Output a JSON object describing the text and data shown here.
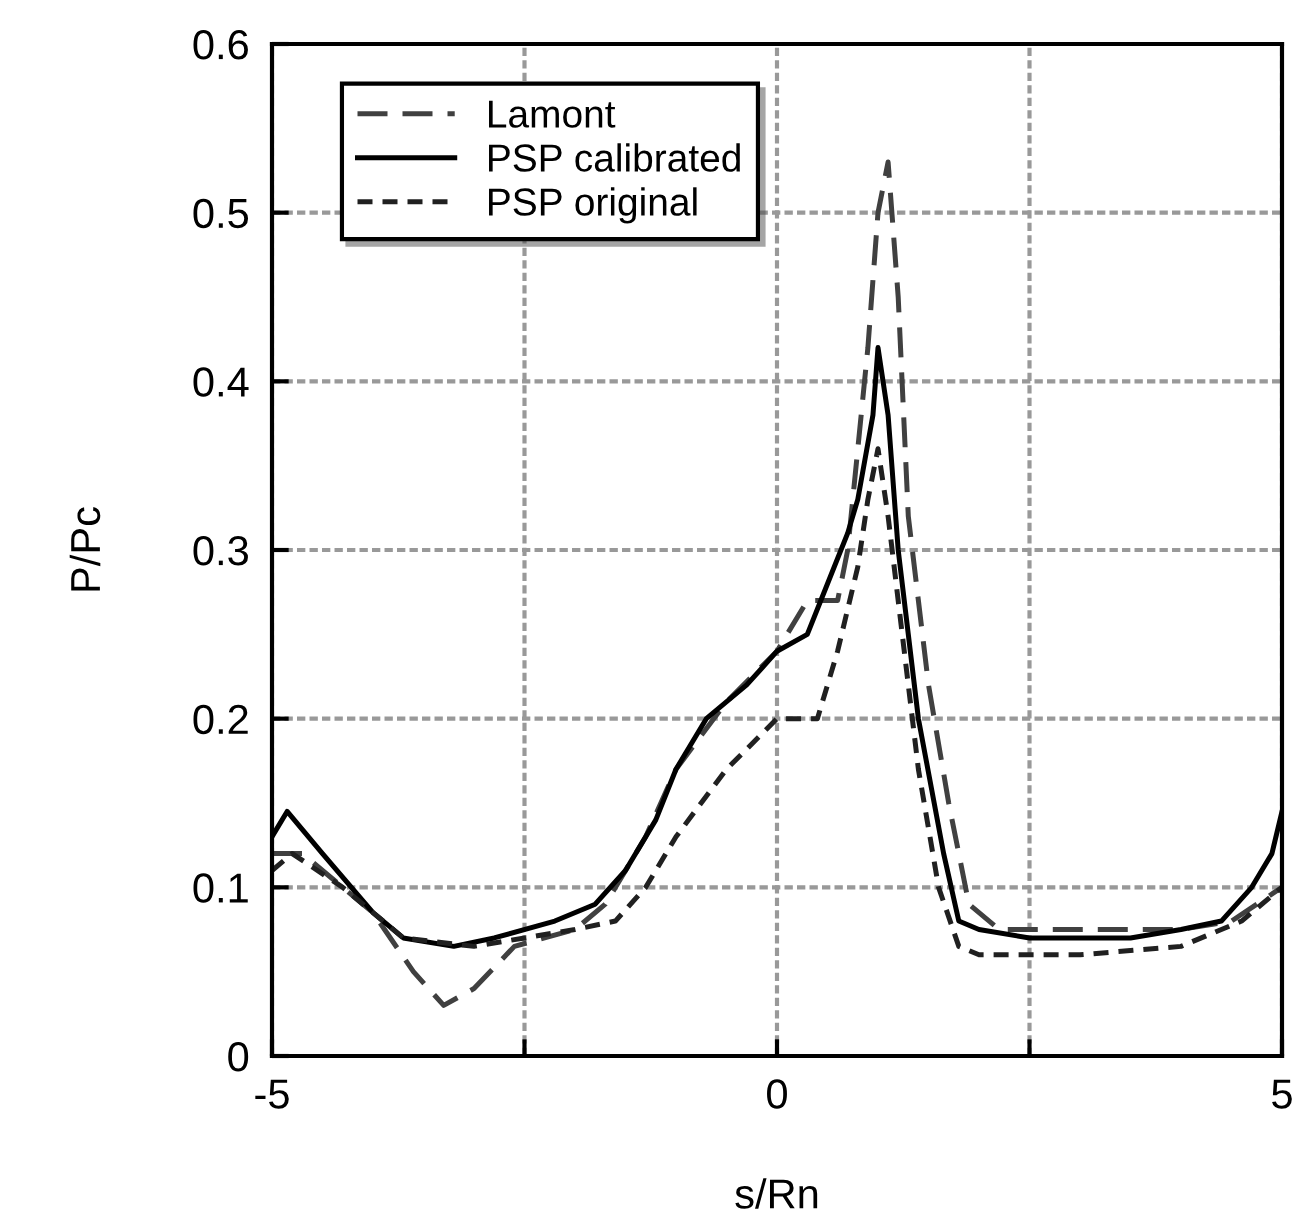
{
  "chart_data": {
    "type": "line",
    "xlabel": "s/Rn",
    "ylabel": "P/Pc",
    "xlim": [
      -5,
      5
    ],
    "ylim": [
      0,
      0.6
    ],
    "xticks": [
      -5,
      {
        "value": -2.5,
        "label": null
      },
      0,
      {
        "value": 2.5,
        "label": null
      },
      5
    ],
    "yticks": [
      0,
      0.1,
      0.2,
      0.3,
      0.4,
      0.5,
      0.6
    ],
    "grid": true,
    "legend": "top left",
    "marker": "none",
    "series": [
      {
        "name": "Lamont",
        "color": "#404040",
        "line_style": "dashed",
        "x": [
          -5,
          -4.7,
          -4,
          -3.6,
          -3.3,
          -3.0,
          -2.6,
          -2,
          -1.7,
          -1.3,
          -1,
          -0.5,
          0,
          0.3,
          0.6,
          0.7,
          0.9,
          1.0,
          1.1,
          1.2,
          1.3,
          1.5,
          1.7,
          1.9,
          2.2,
          3,
          4,
          4.5,
          5
        ],
        "values": [
          0.12,
          0.12,
          0.085,
          0.05,
          0.03,
          0.04,
          0.065,
          0.075,
          0.09,
          0.13,
          0.17,
          0.21,
          0.24,
          0.27,
          0.27,
          0.3,
          0.42,
          0.5,
          0.53,
          0.45,
          0.32,
          0.22,
          0.15,
          0.09,
          0.075,
          0.075,
          0.075,
          0.08,
          0.1
        ]
      },
      {
        "name": "PSP calibrated",
        "color": "#000000",
        "line_style": "solid",
        "x": [
          -5,
          -4.85,
          -4.5,
          -4,
          -3.7,
          -3.2,
          -2.8,
          -2.2,
          -1.8,
          -1.5,
          -1.2,
          -1,
          -0.7,
          -0.3,
          0,
          0.3,
          0.5,
          0.7,
          0.8,
          0.95,
          1.0,
          1.1,
          1.2,
          1.4,
          1.65,
          1.8,
          2.0,
          2.5,
          3.5,
          4.0,
          4.4,
          4.7,
          4.9,
          5
        ],
        "values": [
          0.13,
          0.145,
          0.12,
          0.085,
          0.07,
          0.065,
          0.07,
          0.08,
          0.09,
          0.11,
          0.14,
          0.17,
          0.2,
          0.22,
          0.24,
          0.25,
          0.28,
          0.31,
          0.33,
          0.38,
          0.42,
          0.38,
          0.3,
          0.2,
          0.12,
          0.08,
          0.075,
          0.07,
          0.07,
          0.075,
          0.08,
          0.1,
          0.12,
          0.145
        ]
      },
      {
        "name": "PSP original",
        "color": "#202020",
        "line_style": "dotted",
        "x": [
          -5,
          -4.8,
          -4.3,
          -3.7,
          -3,
          -2.5,
          -2,
          -1.6,
          -1.3,
          -1,
          -0.5,
          0,
          0.4,
          0.6,
          0.8,
          0.9,
          1.0,
          1.1,
          1.2,
          1.4,
          1.6,
          1.8,
          2,
          3,
          4,
          4.6,
          5
        ],
        "values": [
          0.11,
          0.12,
          0.1,
          0.07,
          0.065,
          0.07,
          0.075,
          0.08,
          0.1,
          0.13,
          0.17,
          0.2,
          0.2,
          0.24,
          0.29,
          0.33,
          0.36,
          0.32,
          0.27,
          0.17,
          0.1,
          0.065,
          0.06,
          0.06,
          0.065,
          0.08,
          0.1
        ]
      }
    ]
  }
}
